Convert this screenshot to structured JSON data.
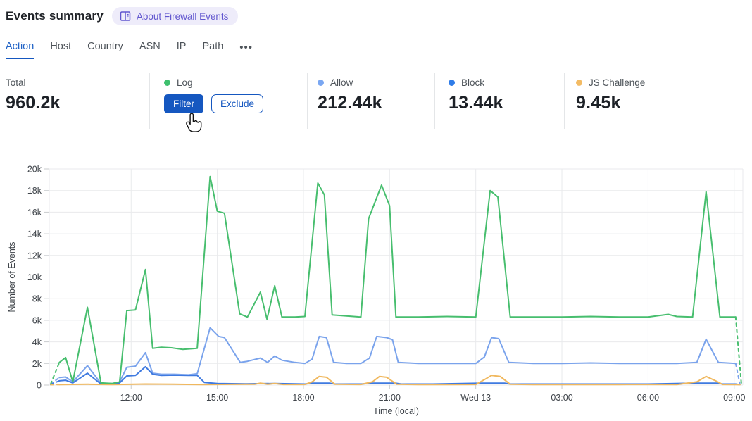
{
  "header": {
    "title": "Events summary",
    "about_badge": "About Firewall Events"
  },
  "tabs": {
    "items": [
      {
        "label": "Action",
        "active": true
      },
      {
        "label": "Host",
        "active": false
      },
      {
        "label": "Country",
        "active": false
      },
      {
        "label": "ASN",
        "active": false
      },
      {
        "label": "IP",
        "active": false
      },
      {
        "label": "Path",
        "active": false
      }
    ],
    "more": "•••"
  },
  "stats": {
    "columns": [
      {
        "label": "Total",
        "value": "960.2k",
        "dot_color": ""
      },
      {
        "label": "Log",
        "value": "",
        "dot_color": "#3ec06e"
      },
      {
        "label": "Allow",
        "value": "212.44k",
        "dot_color": "#7aa7f2"
      },
      {
        "label": "Block",
        "value": "13.44k",
        "dot_color": "#2f7ce8"
      },
      {
        "label": "JS Challenge",
        "value": "9.45k",
        "dot_color": "#f3bb64"
      }
    ],
    "buttons": {
      "filter": "Filter",
      "exclude": "Exclude"
    }
  },
  "chart_data": {
    "type": "line",
    "title": "",
    "xlabel": "Time (local)",
    "ylabel": "Number of Events",
    "grid": true,
    "legend_position": "none",
    "x_unit_note": "hours since first day 00:00; 24 = Wed 13 00:00; values in thousands of events",
    "x_range": [
      9.15,
      33.3
    ],
    "y_max_k": 20,
    "y_ticks": [
      {
        "v": 0,
        "label": "0"
      },
      {
        "v": 2,
        "label": "2k"
      },
      {
        "v": 4,
        "label": "4k"
      },
      {
        "v": 6,
        "label": "6k"
      },
      {
        "v": 8,
        "label": "8k"
      },
      {
        "v": 10,
        "label": "10k"
      },
      {
        "v": 12,
        "label": "12k"
      },
      {
        "v": 14,
        "label": "14k"
      },
      {
        "v": 16,
        "label": "16k"
      },
      {
        "v": 18,
        "label": "18k"
      },
      {
        "v": 20,
        "label": "20k"
      }
    ],
    "x_ticks": [
      {
        "v": 12,
        "label": "12:00"
      },
      {
        "v": 15,
        "label": "15:00"
      },
      {
        "v": 18,
        "label": "18:00"
      },
      {
        "v": 21,
        "label": "21:00"
      },
      {
        "v": 24,
        "label": "Wed 13"
      },
      {
        "v": 27,
        "label": "03:00"
      },
      {
        "v": 30,
        "label": "06:00"
      },
      {
        "v": 33,
        "label": "09:00"
      }
    ],
    "series": [
      {
        "name": "Allow",
        "color": "#7aa3ec",
        "dashed_head": [
          [
            9.2,
            0.1
          ],
          [
            9.5,
            0.7
          ]
        ],
        "points": [
          [
            9.5,
            0.7
          ],
          [
            9.72,
            0.75
          ],
          [
            9.97,
            0.3
          ],
          [
            10.48,
            1.8
          ],
          [
            10.95,
            0.15
          ],
          [
            11.35,
            0.15
          ],
          [
            11.6,
            0.3
          ],
          [
            11.85,
            1.65
          ],
          [
            12.15,
            1.75
          ],
          [
            12.5,
            3.0
          ],
          [
            12.75,
            1.1
          ],
          [
            13.05,
            1.0
          ],
          [
            13.5,
            1.0
          ],
          [
            14.0,
            0.95
          ],
          [
            14.3,
            1.05
          ],
          [
            14.75,
            5.3
          ],
          [
            15.05,
            4.5
          ],
          [
            15.25,
            4.4
          ],
          [
            15.8,
            2.1
          ],
          [
            16.05,
            2.2
          ],
          [
            16.5,
            2.5
          ],
          [
            16.75,
            2.1
          ],
          [
            17.0,
            2.7
          ],
          [
            17.25,
            2.3
          ],
          [
            17.7,
            2.1
          ],
          [
            18.05,
            2.0
          ],
          [
            18.3,
            2.4
          ],
          [
            18.55,
            4.5
          ],
          [
            18.8,
            4.4
          ],
          [
            19.05,
            2.1
          ],
          [
            19.5,
            2.0
          ],
          [
            20.0,
            2.0
          ],
          [
            20.3,
            2.5
          ],
          [
            20.55,
            4.5
          ],
          [
            20.9,
            4.4
          ],
          [
            21.1,
            4.2
          ],
          [
            21.3,
            2.1
          ],
          [
            22.0,
            2.0
          ],
          [
            23.0,
            2.0
          ],
          [
            24.0,
            2.0
          ],
          [
            24.3,
            2.6
          ],
          [
            24.55,
            4.4
          ],
          [
            24.8,
            4.3
          ],
          [
            25.15,
            2.1
          ],
          [
            26.0,
            2.0
          ],
          [
            27.0,
            2.0
          ],
          [
            28.0,
            2.05
          ],
          [
            29.0,
            2.0
          ],
          [
            30.0,
            2.0
          ],
          [
            31.0,
            2.0
          ],
          [
            31.7,
            2.1
          ],
          [
            32.02,
            4.25
          ],
          [
            32.45,
            2.1
          ],
          [
            33.05,
            2.0
          ]
        ],
        "dashed_tail": [
          [
            33.05,
            2.0
          ],
          [
            33.2,
            0.05
          ]
        ]
      },
      {
        "name": "Block",
        "color": "#3f7ae0",
        "dashed_head": [
          [
            9.2,
            0.05
          ],
          [
            9.5,
            0.4
          ]
        ],
        "points": [
          [
            9.5,
            0.4
          ],
          [
            9.72,
            0.45
          ],
          [
            9.97,
            0.2
          ],
          [
            10.48,
            1.1
          ],
          [
            10.95,
            0.1
          ],
          [
            11.35,
            0.1
          ],
          [
            11.6,
            0.2
          ],
          [
            11.85,
            0.85
          ],
          [
            12.15,
            0.9
          ],
          [
            12.5,
            1.7
          ],
          [
            12.75,
            1.0
          ],
          [
            13.05,
            0.9
          ],
          [
            13.5,
            0.92
          ],
          [
            14.0,
            0.9
          ],
          [
            14.3,
            0.9
          ],
          [
            14.55,
            0.25
          ],
          [
            15.0,
            0.15
          ],
          [
            16.0,
            0.12
          ],
          [
            17.0,
            0.15
          ],
          [
            18.05,
            0.1
          ],
          [
            18.3,
            0.18
          ],
          [
            18.9,
            0.18
          ],
          [
            19.1,
            0.1
          ],
          [
            20.0,
            0.1
          ],
          [
            20.4,
            0.18
          ],
          [
            21.2,
            0.18
          ],
          [
            21.4,
            0.1
          ],
          [
            22.5,
            0.1
          ],
          [
            24.2,
            0.18
          ],
          [
            25.0,
            0.18
          ],
          [
            25.2,
            0.1
          ],
          [
            26.5,
            0.1
          ],
          [
            28.0,
            0.1
          ],
          [
            30.0,
            0.1
          ],
          [
            31.6,
            0.18
          ],
          [
            32.4,
            0.18
          ],
          [
            32.6,
            0.1
          ],
          [
            33.05,
            0.1
          ]
        ],
        "dashed_tail": [
          [
            33.05,
            0.1
          ],
          [
            33.2,
            0.03
          ]
        ]
      },
      {
        "name": "JS Challenge",
        "color": "#f0b85e",
        "dashed_head": [
          [
            9.2,
            0.03
          ],
          [
            9.5,
            0.05
          ]
        ],
        "points": [
          [
            9.5,
            0.05
          ],
          [
            10.5,
            0.08
          ],
          [
            11.35,
            0.05
          ],
          [
            12.5,
            0.1
          ],
          [
            13.5,
            0.08
          ],
          [
            14.5,
            0.05
          ],
          [
            15.5,
            0.07
          ],
          [
            16.3,
            0.08
          ],
          [
            16.5,
            0.18
          ],
          [
            16.75,
            0.08
          ],
          [
            17.0,
            0.15
          ],
          [
            17.3,
            0.06
          ],
          [
            18.05,
            0.06
          ],
          [
            18.3,
            0.3
          ],
          [
            18.55,
            0.8
          ],
          [
            18.8,
            0.72
          ],
          [
            19.1,
            0.08
          ],
          [
            20.0,
            0.06
          ],
          [
            20.4,
            0.3
          ],
          [
            20.65,
            0.8
          ],
          [
            20.9,
            0.72
          ],
          [
            21.25,
            0.08
          ],
          [
            22.0,
            0.05
          ],
          [
            23.0,
            0.05
          ],
          [
            24.0,
            0.06
          ],
          [
            24.3,
            0.5
          ],
          [
            24.55,
            0.9
          ],
          [
            24.85,
            0.8
          ],
          [
            25.2,
            0.08
          ],
          [
            26.0,
            0.05
          ],
          [
            27.0,
            0.05
          ],
          [
            28.0,
            0.05
          ],
          [
            29.0,
            0.05
          ],
          [
            30.0,
            0.06
          ],
          [
            31.0,
            0.05
          ],
          [
            31.7,
            0.3
          ],
          [
            32.02,
            0.8
          ],
          [
            32.35,
            0.4
          ],
          [
            32.6,
            0.06
          ],
          [
            33.1,
            0.05
          ]
        ],
        "dashed_tail": [
          [
            33.1,
            0.05
          ],
          [
            33.25,
            0.03
          ]
        ]
      },
      {
        "name": "Log",
        "color": "#47be6e",
        "dashed_head": [
          [
            9.2,
            0.1
          ],
          [
            9.5,
            2.1
          ]
        ],
        "points": [
          [
            9.5,
            2.1
          ],
          [
            9.72,
            2.55
          ],
          [
            9.97,
            0.3
          ],
          [
            10.48,
            7.2
          ],
          [
            10.95,
            0.2
          ],
          [
            11.35,
            0.15
          ],
          [
            11.6,
            0.3
          ],
          [
            11.85,
            6.9
          ],
          [
            12.15,
            6.95
          ],
          [
            12.5,
            10.7
          ],
          [
            12.75,
            3.4
          ],
          [
            13.05,
            3.5
          ],
          [
            13.4,
            3.45
          ],
          [
            13.8,
            3.3
          ],
          [
            14.3,
            3.4
          ],
          [
            14.75,
            19.3
          ],
          [
            15.0,
            16.1
          ],
          [
            15.25,
            15.9
          ],
          [
            15.78,
            6.6
          ],
          [
            16.05,
            6.3
          ],
          [
            16.5,
            8.6
          ],
          [
            16.73,
            6.1
          ],
          [
            17.0,
            9.2
          ],
          [
            17.25,
            6.3
          ],
          [
            17.7,
            6.3
          ],
          [
            18.05,
            6.35
          ],
          [
            18.5,
            18.7
          ],
          [
            18.73,
            17.6
          ],
          [
            19.0,
            6.5
          ],
          [
            19.5,
            6.4
          ],
          [
            20.0,
            6.3
          ],
          [
            20.27,
            15.4
          ],
          [
            20.72,
            18.5
          ],
          [
            21.0,
            16.6
          ],
          [
            21.22,
            6.3
          ],
          [
            22.0,
            6.3
          ],
          [
            23.0,
            6.35
          ],
          [
            24.0,
            6.3
          ],
          [
            24.5,
            18.0
          ],
          [
            24.77,
            17.4
          ],
          [
            25.2,
            6.3
          ],
          [
            26.0,
            6.3
          ],
          [
            27.0,
            6.3
          ],
          [
            28.0,
            6.35
          ],
          [
            29.0,
            6.3
          ],
          [
            30.0,
            6.3
          ],
          [
            30.7,
            6.55
          ],
          [
            31.0,
            6.35
          ],
          [
            31.55,
            6.3
          ],
          [
            32.02,
            17.9
          ],
          [
            32.5,
            6.3
          ],
          [
            33.05,
            6.3
          ]
        ],
        "dashed_tail": [
          [
            33.05,
            6.3
          ],
          [
            33.25,
            0.05
          ]
        ]
      }
    ]
  }
}
